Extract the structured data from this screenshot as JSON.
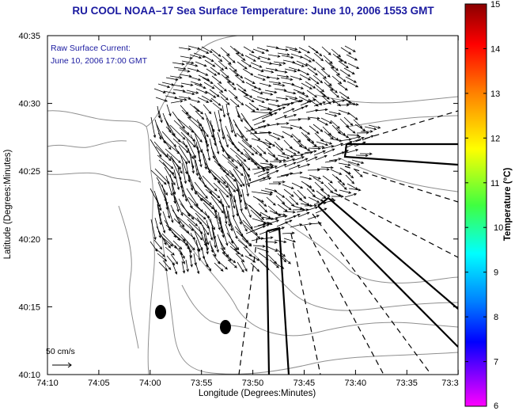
{
  "map": {
    "title": "RU COOL  NOAA–17  Sea Surface Temperature:  June 10, 2006 1553 GMT",
    "current_label_1": "Raw Surface Current:",
    "current_label_2": "June 10, 2006 17:00 GMT",
    "scale_label": "50 cm/s",
    "x_axis_label": "Longitude (Degrees:Minutes)",
    "y_axis_label": "Latitude (Degrees:Minutes)",
    "x_ticks": [
      "74:10",
      "74:05",
      "74:00",
      "73:55",
      "73:50",
      "73:45",
      "73:40",
      "73:35",
      "73:3"
    ],
    "y_ticks": [
      "40:10",
      "40:15",
      "40:20",
      "40:25",
      "40:30",
      "40:35"
    ]
  },
  "colorbar": {
    "label": "Temperature (°C)",
    "ticks": [
      "15",
      "14",
      "13",
      "12",
      "11",
      "10",
      "9",
      "8",
      "7",
      "6"
    ],
    "colors": [
      "#b00000",
      "#ff0000",
      "#ff8000",
      "#ffff00",
      "#40ff40",
      "#00ffff",
      "#0080ff",
      "#0000ff",
      "#8000ff",
      "#ff00ff"
    ]
  }
}
